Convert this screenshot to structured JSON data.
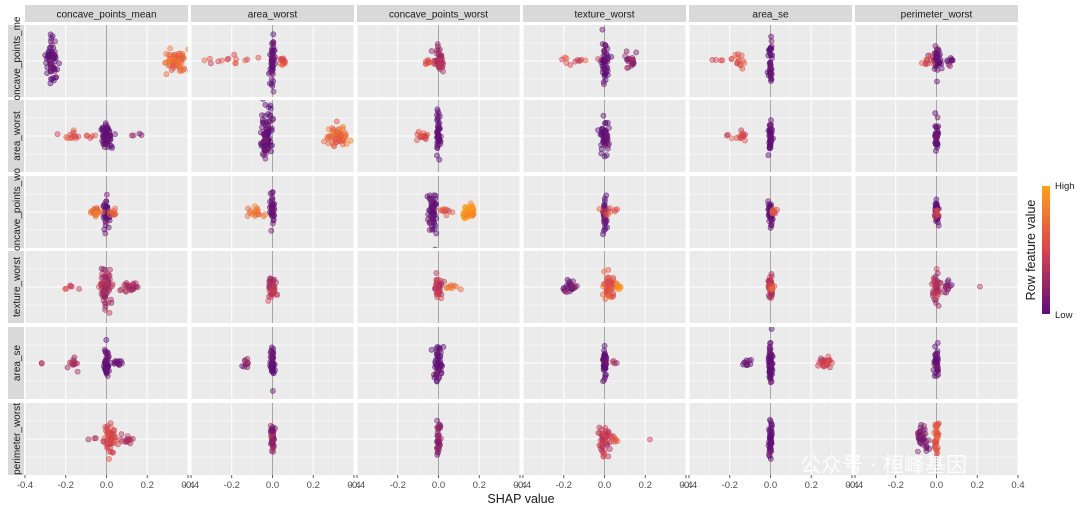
{
  "chart_data": {
    "type": "scatter",
    "subtype": "shap-interaction-beeswarm-grid",
    "features": [
      "concave_points_mean",
      "area_worst",
      "concave_points_worst",
      "texture_worst",
      "area_se",
      "perimeter_worst"
    ],
    "row_labels": [
      "concave_points_me",
      "area_worst",
      "concave_points_wo",
      "texture_worst",
      "area_se",
      "perimeter_worst"
    ],
    "xlabel": "SHAP value",
    "xlim": [
      -0.4,
      0.4
    ],
    "x_ticks": [
      -0.4,
      -0.2,
      0.0,
      0.2,
      0.4
    ],
    "x_tick_labels": [
      "-0.4",
      "-0.2",
      "0.0",
      "0.2",
      "0.4"
    ],
    "legend": {
      "title": "Row feature value",
      "high_label": "High",
      "low_label": "Low",
      "placement": "right",
      "color_low": "#5b0f78",
      "color_mid": "#d9434f",
      "color_high": "#ffa01a"
    },
    "colors": {
      "panel_background": "#ebebeb",
      "strip_background": "#d9d9d9",
      "grid_line": "#ffffff",
      "zero_line": "#a6a6a6"
    },
    "cells": [
      [
        {
          "row": 0,
          "col": 0,
          "clusters": [
            {
              "x": -0.27,
              "w": 0.03,
              "c": 0.0,
              "n": 60,
              "h": 0.85
            },
            {
              "x": 0.34,
              "w": 0.06,
              "c": 0.7,
              "n": 70,
              "h": 0.4
            }
          ]
        },
        {
          "row": 0,
          "col": 1,
          "clusters": [
            {
              "x": 0.0,
              "w": 0.01,
              "c": 0.0,
              "n": 50,
              "h": 0.85
            },
            {
              "x": -0.2,
              "w": 0.15,
              "c": 0.55,
              "n": 14,
              "h": 0.2
            },
            {
              "x": 0.05,
              "w": 0.02,
              "c": 0.6,
              "n": 14,
              "h": 0.2
            }
          ]
        },
        {
          "row": 0,
          "col": 2,
          "clusters": [
            {
              "x": 0.0,
              "w": 0.02,
              "c": 0.3,
              "n": 50,
              "h": 0.5
            },
            {
              "x": -0.05,
              "w": 0.02,
              "c": 0.6,
              "n": 10,
              "h": 0.2
            }
          ]
        },
        {
          "row": 0,
          "col": 3,
          "clusters": [
            {
              "x": 0.0,
              "w": 0.02,
              "c": 0.0,
              "n": 50,
              "h": 0.85
            },
            {
              "x": 0.12,
              "w": 0.04,
              "c": 0.2,
              "n": 20,
              "h": 0.25
            },
            {
              "x": -0.15,
              "w": 0.1,
              "c": 0.55,
              "n": 12,
              "h": 0.2
            }
          ]
        },
        {
          "row": 0,
          "col": 4,
          "clusters": [
            {
              "x": 0.0,
              "w": 0.01,
              "c": 0.0,
              "n": 40,
              "h": 0.85
            },
            {
              "x": -0.15,
              "w": 0.04,
              "c": 0.6,
              "n": 15,
              "h": 0.25
            },
            {
              "x": -0.27,
              "w": 0.04,
              "c": 0.4,
              "n": 4,
              "h": 0.1
            }
          ]
        },
        {
          "row": 0,
          "col": 5,
          "clusters": [
            {
              "x": 0.0,
              "w": 0.02,
              "c": 0.0,
              "n": 50,
              "h": 0.5
            },
            {
              "x": 0.06,
              "w": 0.03,
              "c": 0.1,
              "n": 10,
              "h": 0.2
            },
            {
              "x": -0.05,
              "w": 0.04,
              "c": 0.5,
              "n": 10,
              "h": 0.2
            }
          ]
        }
      ],
      [
        {
          "row": 1,
          "col": 0,
          "clusters": [
            {
              "x": 0.0,
              "w": 0.03,
              "c": 0.0,
              "n": 60,
              "h": 0.5
            },
            {
              "x": -0.16,
              "w": 0.1,
              "c": 0.55,
              "n": 18,
              "h": 0.15
            },
            {
              "x": 0.15,
              "w": 0.05,
              "c": 0.2,
              "n": 4,
              "h": 0.1
            }
          ]
        },
        {
          "row": 1,
          "col": 1,
          "clusters": [
            {
              "x": -0.03,
              "w": 0.03,
              "c": 0.0,
              "n": 90,
              "h": 0.85
            },
            {
              "x": 0.32,
              "w": 0.06,
              "c": 0.7,
              "n": 60,
              "h": 0.35
            }
          ]
        },
        {
          "row": 1,
          "col": 2,
          "clusters": [
            {
              "x": 0.0,
              "w": 0.01,
              "c": 0.0,
              "n": 50,
              "h": 0.85
            },
            {
              "x": -0.08,
              "w": 0.03,
              "c": 0.5,
              "n": 15,
              "h": 0.2
            }
          ]
        },
        {
          "row": 1,
          "col": 3,
          "clusters": [
            {
              "x": 0.0,
              "w": 0.02,
              "c": 0.0,
              "n": 50,
              "h": 0.6
            }
          ]
        },
        {
          "row": 1,
          "col": 4,
          "clusters": [
            {
              "x": 0.0,
              "w": 0.01,
              "c": 0.0,
              "n": 40,
              "h": 0.6
            },
            {
              "x": -0.14,
              "w": 0.03,
              "c": 0.55,
              "n": 14,
              "h": 0.2
            },
            {
              "x": -0.2,
              "w": 0.02,
              "c": 0.4,
              "n": 2,
              "h": 0.05
            }
          ]
        },
        {
          "row": 1,
          "col": 5,
          "clusters": [
            {
              "x": 0.0,
              "w": 0.01,
              "c": 0.0,
              "n": 40,
              "h": 0.6
            }
          ]
        }
      ],
      [
        {
          "row": 2,
          "col": 0,
          "clusters": [
            {
              "x": 0.0,
              "w": 0.02,
              "c": 0.0,
              "n": 40,
              "h": 0.6
            },
            {
              "x": -0.05,
              "w": 0.03,
              "c": 0.75,
              "n": 20,
              "h": 0.2
            },
            {
              "x": 0.04,
              "w": 0.02,
              "c": 0.65,
              "n": 10,
              "h": 0.2
            }
          ]
        },
        {
          "row": 2,
          "col": 1,
          "clusters": [
            {
              "x": 0.0,
              "w": 0.01,
              "c": 0.0,
              "n": 40,
              "h": 0.6
            },
            {
              "x": -0.08,
              "w": 0.04,
              "c": 0.75,
              "n": 18,
              "h": 0.2
            }
          ]
        },
        {
          "row": 2,
          "col": 2,
          "clusters": [
            {
              "x": -0.03,
              "w": 0.02,
              "c": 0.0,
              "n": 60,
              "h": 0.85
            },
            {
              "x": 0.15,
              "w": 0.03,
              "c": 0.9,
              "n": 50,
              "h": 0.25
            },
            {
              "x": 0.03,
              "w": 0.05,
              "c": 0.55,
              "n": 10,
              "h": 0.15
            }
          ]
        },
        {
          "row": 2,
          "col": 3,
          "clusters": [
            {
              "x": 0.0,
              "w": 0.01,
              "c": 0.0,
              "n": 40,
              "h": 0.6
            },
            {
              "x": 0.02,
              "w": 0.03,
              "c": 0.6,
              "n": 10,
              "h": 0.2
            }
          ]
        },
        {
          "row": 2,
          "col": 4,
          "clusters": [
            {
              "x": 0.0,
              "w": 0.01,
              "c": 0.0,
              "n": 40,
              "h": 0.6
            },
            {
              "x": 0.02,
              "w": 0.02,
              "c": 0.6,
              "n": 8,
              "h": 0.2
            }
          ]
        },
        {
          "row": 2,
          "col": 5,
          "clusters": [
            {
              "x": 0.0,
              "w": 0.01,
              "c": 0.0,
              "n": 40,
              "h": 0.6
            },
            {
              "x": 0.0,
              "w": 0.01,
              "c": 0.6,
              "n": 6,
              "h": 0.2
            }
          ]
        }
      ],
      [
        {
          "row": 3,
          "col": 0,
          "clusters": [
            {
              "x": 0.0,
              "w": 0.03,
              "c": 0.3,
              "n": 70,
              "h": 0.7
            },
            {
              "x": 0.12,
              "w": 0.04,
              "c": 0.3,
              "n": 25,
              "h": 0.25
            },
            {
              "x": -0.18,
              "w": 0.12,
              "c": 0.4,
              "n": 8,
              "h": 0.1
            }
          ]
        },
        {
          "row": 3,
          "col": 1,
          "clusters": [
            {
              "x": 0.0,
              "w": 0.02,
              "c": 0.35,
              "n": 40,
              "h": 0.5
            }
          ]
        },
        {
          "row": 3,
          "col": 2,
          "clusters": [
            {
              "x": 0.0,
              "w": 0.02,
              "c": 0.4,
              "n": 40,
              "h": 0.5
            },
            {
              "x": 0.06,
              "w": 0.04,
              "c": 0.8,
              "n": 10,
              "h": 0.1
            }
          ]
        },
        {
          "row": 3,
          "col": 3,
          "clusters": [
            {
              "x": 0.02,
              "w": 0.03,
              "c": 0.6,
              "n": 60,
              "h": 0.5
            },
            {
              "x": -0.17,
              "w": 0.03,
              "c": 0.05,
              "n": 25,
              "h": 0.2
            },
            {
              "x": 0.07,
              "w": 0.02,
              "c": 0.95,
              "n": 10,
              "h": 0.2
            }
          ]
        },
        {
          "row": 3,
          "col": 4,
          "clusters": [
            {
              "x": 0.0,
              "w": 0.01,
              "c": 0.35,
              "n": 40,
              "h": 0.5
            },
            {
              "x": 0.0,
              "w": 0.02,
              "c": 0.6,
              "n": 6,
              "h": 0.2
            }
          ]
        },
        {
          "row": 3,
          "col": 5,
          "clusters": [
            {
              "x": 0.0,
              "w": 0.02,
              "c": 0.35,
              "n": 40,
              "h": 0.5
            },
            {
              "x": 0.05,
              "w": 0.03,
              "c": 0.2,
              "n": 12,
              "h": 0.25
            },
            {
              "x": 0.21,
              "w": 0.01,
              "c": 0.4,
              "n": 1,
              "h": 0.05
            }
          ]
        }
      ],
      [
        {
          "row": 4,
          "col": 0,
          "clusters": [
            {
              "x": 0.0,
              "w": 0.01,
              "c": 0.0,
              "n": 50,
              "h": 0.6
            },
            {
              "x": -0.16,
              "w": 0.03,
              "c": 0.3,
              "n": 14,
              "h": 0.2
            },
            {
              "x": 0.06,
              "w": 0.04,
              "c": 0.05,
              "n": 14,
              "h": 0.15
            },
            {
              "x": -0.32,
              "w": 0.02,
              "c": 0.3,
              "n": 2,
              "h": 0.05
            }
          ]
        },
        {
          "row": 4,
          "col": 1,
          "clusters": [
            {
              "x": 0.0,
              "w": 0.01,
              "c": 0.0,
              "n": 50,
              "h": 0.6
            },
            {
              "x": -0.13,
              "w": 0.02,
              "c": 0.2,
              "n": 10,
              "h": 0.2
            }
          ]
        },
        {
          "row": 4,
          "col": 2,
          "clusters": [
            {
              "x": 0.0,
              "w": 0.02,
              "c": 0.0,
              "n": 50,
              "h": 0.6
            }
          ]
        },
        {
          "row": 4,
          "col": 3,
          "clusters": [
            {
              "x": 0.0,
              "w": 0.01,
              "c": 0.0,
              "n": 50,
              "h": 0.6
            },
            {
              "x": 0.05,
              "w": 0.02,
              "c": 0.3,
              "n": 4,
              "h": 0.1
            }
          ]
        },
        {
          "row": 4,
          "col": 4,
          "clusters": [
            {
              "x": 0.0,
              "w": 0.01,
              "c": 0.0,
              "n": 60,
              "h": 0.85
            },
            {
              "x": 0.27,
              "w": 0.03,
              "c": 0.45,
              "n": 30,
              "h": 0.2
            },
            {
              "x": -0.12,
              "w": 0.02,
              "c": 0.0,
              "n": 10,
              "h": 0.2
            }
          ]
        },
        {
          "row": 4,
          "col": 5,
          "clusters": [
            {
              "x": 0.0,
              "w": 0.01,
              "c": 0.0,
              "n": 40,
              "h": 0.6
            }
          ]
        }
      ],
      [
        {
          "row": 5,
          "col": 0,
          "clusters": [
            {
              "x": 0.02,
              "w": 0.03,
              "c": 0.5,
              "n": 60,
              "h": 0.6
            },
            {
              "x": 0.1,
              "w": 0.03,
              "c": 0.35,
              "n": 15,
              "h": 0.2
            },
            {
              "x": -0.1,
              "w": 0.05,
              "c": 0.3,
              "n": 3,
              "h": 0.05
            }
          ]
        },
        {
          "row": 5,
          "col": 1,
          "clusters": [
            {
              "x": 0.0,
              "w": 0.01,
              "c": 0.2,
              "n": 40,
              "h": 0.6
            }
          ]
        },
        {
          "row": 5,
          "col": 2,
          "clusters": [
            {
              "x": 0.0,
              "w": 0.01,
              "c": 0.2,
              "n": 40,
              "h": 0.6
            }
          ]
        },
        {
          "row": 5,
          "col": 3,
          "clusters": [
            {
              "x": 0.0,
              "w": 0.03,
              "c": 0.4,
              "n": 50,
              "h": 0.5
            },
            {
              "x": 0.05,
              "w": 0.02,
              "c": 0.6,
              "n": 8,
              "h": 0.2
            },
            {
              "x": 0.22,
              "w": 0.01,
              "c": 0.5,
              "n": 1,
              "h": 0.05
            }
          ]
        },
        {
          "row": 5,
          "col": 4,
          "clusters": [
            {
              "x": 0.0,
              "w": 0.01,
              "c": 0.0,
              "n": 50,
              "h": 0.8
            }
          ]
        },
        {
          "row": 5,
          "col": 5,
          "clusters": [
            {
              "x": -0.07,
              "w": 0.03,
              "c": 0.1,
              "n": 40,
              "h": 0.4
            },
            {
              "x": 0.0,
              "w": 0.01,
              "c": 0.6,
              "n": 40,
              "h": 0.7
            }
          ]
        }
      ]
    ]
  },
  "watermark": {
    "text": "公众号 · 桓峰基因"
  }
}
